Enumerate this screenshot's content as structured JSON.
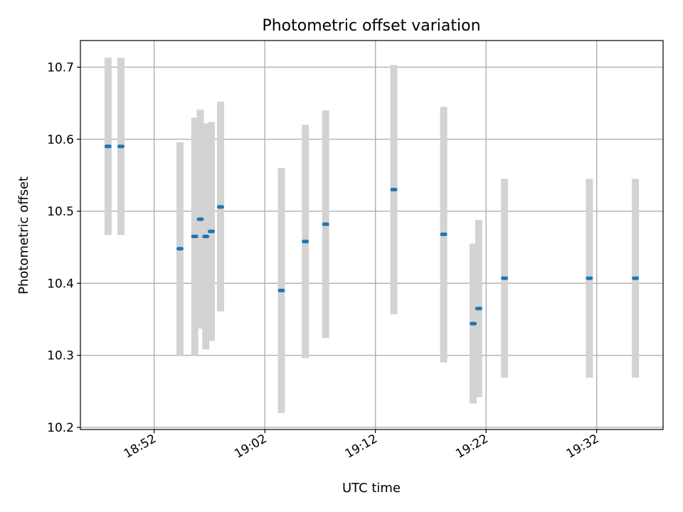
{
  "chart_data": {
    "type": "scatter",
    "title": "Photometric offset variation",
    "xlabel": "UTC time",
    "ylabel": "Photometric offset",
    "x_tick_labels": [
      "18:52",
      "19:02",
      "19:12",
      "19:22",
      "19:32"
    ],
    "y_tick_labels": [
      "10.2",
      "10.3",
      "10.4",
      "10.5",
      "10.6",
      "10.7"
    ],
    "xlim": [
      "18:45:20",
      "19:38:00"
    ],
    "ylim": [
      10.197,
      10.737
    ],
    "grid": true,
    "colors": {
      "marker": "#1f77b4",
      "errorbar": "#d3d3d3",
      "grid": "#b0b0b0"
    },
    "points": [
      {
        "x": "18:47:50",
        "y": 10.59,
        "ymin": 10.467,
        "ymax": 10.713
      },
      {
        "x": "18:49:00",
        "y": 10.59,
        "ymin": 10.467,
        "ymax": 10.713
      },
      {
        "x": "18:54:20",
        "y": 10.448,
        "ymin": 10.3,
        "ymax": 10.596
      },
      {
        "x": "18:55:40",
        "y": 10.465,
        "ymin": 10.3,
        "ymax": 10.63
      },
      {
        "x": "18:56:10",
        "y": 10.489,
        "ymin": 10.337,
        "ymax": 10.641
      },
      {
        "x": "18:56:40",
        "y": 10.465,
        "ymin": 10.308,
        "ymax": 10.622
      },
      {
        "x": "18:57:10",
        "y": 10.472,
        "ymin": 10.32,
        "ymax": 10.624
      },
      {
        "x": "18:58:00",
        "y": 10.506,
        "ymin": 10.361,
        "ymax": 10.652
      },
      {
        "x": "19:03:30",
        "y": 10.39,
        "ymin": 10.22,
        "ymax": 10.56
      },
      {
        "x": "19:05:40",
        "y": 10.458,
        "ymin": 10.296,
        "ymax": 10.62
      },
      {
        "x": "19:07:30",
        "y": 10.482,
        "ymin": 10.324,
        "ymax": 10.64
      },
      {
        "x": "19:13:40",
        "y": 10.53,
        "ymin": 10.357,
        "ymax": 10.703
      },
      {
        "x": "19:18:10",
        "y": 10.468,
        "ymin": 10.29,
        "ymax": 10.645
      },
      {
        "x": "19:20:50",
        "y": 10.344,
        "ymin": 10.233,
        "ymax": 10.455
      },
      {
        "x": "19:21:20",
        "y": 10.365,
        "ymin": 10.242,
        "ymax": 10.488
      },
      {
        "x": "19:23:40",
        "y": 10.407,
        "ymin": 10.269,
        "ymax": 10.545
      },
      {
        "x": "19:31:20",
        "y": 10.407,
        "ymin": 10.269,
        "ymax": 10.545
      },
      {
        "x": "19:35:30",
        "y": 10.407,
        "ymin": 10.269,
        "ymax": 10.545
      }
    ]
  }
}
